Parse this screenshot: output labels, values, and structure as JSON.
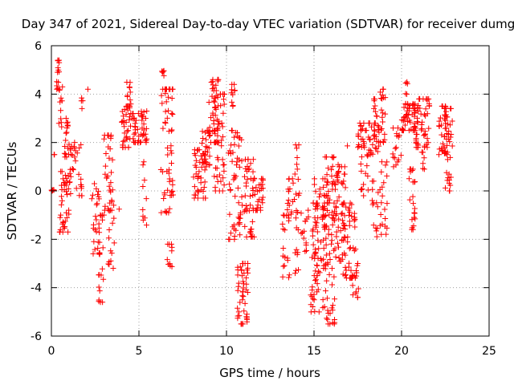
{
  "chart_data": {
    "type": "scatter",
    "title": "Day 347 of 2021, Sidereal Day-to-day VTEC variation (SDTVAR) for receiver dumg",
    "xlabel": "GPS time / hours",
    "ylabel": "SDTVAR / TECUs",
    "xlim": [
      0,
      25
    ],
    "ylim": [
      -6,
      6
    ],
    "xticks": [
      "0",
      "5",
      "10",
      "15",
      "20",
      "25"
    ],
    "yticks": [
      "-6",
      "-4",
      "-2",
      "0",
      "2",
      "4",
      "6"
    ],
    "grid": true,
    "marker": "plus",
    "color": "#ff0000",
    "clusters": [
      {
        "x0": 0.0,
        "x1": 0.15,
        "lo": 0.0,
        "hi": 0.05,
        "n": 6
      },
      {
        "x0": 0.15,
        "x1": 0.2,
        "lo": 1.3,
        "hi": 1.5,
        "n": 2
      },
      {
        "x0": 0.2,
        "x1": 0.45,
        "lo": 4.2,
        "hi": 5.4,
        "n": 14
      },
      {
        "x0": 0.4,
        "x1": 0.65,
        "lo": 2.6,
        "hi": 4.3,
        "n": 10
      },
      {
        "x0": 0.45,
        "x1": 1.0,
        "lo": -1.7,
        "hi": 0.8,
        "n": 38
      },
      {
        "x0": 0.75,
        "x1": 1.0,
        "lo": 1.4,
        "hi": 3.0,
        "n": 16
      },
      {
        "x0": 1.0,
        "x1": 1.75,
        "lo": -0.2,
        "hi": 2.0,
        "n": 34
      },
      {
        "x0": 1.7,
        "x1": 1.85,
        "lo": 3.3,
        "hi": 3.9,
        "n": 4
      },
      {
        "x0": 2.05,
        "x1": 2.1,
        "lo": 4.2,
        "hi": 4.3,
        "n": 1
      },
      {
        "x0": 2.3,
        "x1": 2.75,
        "lo": -2.6,
        "hi": 0.3,
        "n": 24
      },
      {
        "x0": 2.7,
        "x1": 3.0,
        "lo": -4.6,
        "hi": -1.0,
        "n": 22
      },
      {
        "x0": 3.0,
        "x1": 3.5,
        "lo": -0.8,
        "hi": 2.3,
        "n": 30
      },
      {
        "x0": 3.2,
        "x1": 3.6,
        "lo": -3.2,
        "hi": -0.5,
        "n": 16
      },
      {
        "x0": 3.85,
        "x1": 3.95,
        "lo": -0.9,
        "hi": -0.7,
        "n": 1
      },
      {
        "x0": 4.0,
        "x1": 4.5,
        "lo": 1.8,
        "hi": 3.5,
        "n": 34
      },
      {
        "x0": 4.3,
        "x1": 4.55,
        "lo": 3.5,
        "hi": 4.6,
        "n": 10
      },
      {
        "x0": 4.5,
        "x1": 5.0,
        "lo": 2.0,
        "hi": 3.2,
        "n": 24
      },
      {
        "x0": 5.0,
        "x1": 5.45,
        "lo": 2.0,
        "hi": 3.3,
        "n": 24
      },
      {
        "x0": 5.2,
        "x1": 5.45,
        "lo": -1.5,
        "hi": 1.2,
        "n": 10
      },
      {
        "x0": 6.25,
        "x1": 6.45,
        "lo": 4.6,
        "hi": 5.2,
        "n": 5
      },
      {
        "x0": 6.25,
        "x1": 6.95,
        "lo": -0.9,
        "hi": 4.2,
        "n": 56
      },
      {
        "x0": 6.6,
        "x1": 6.9,
        "lo": -3.2,
        "hi": -2.2,
        "n": 10
      },
      {
        "x0": 8.1,
        "x1": 8.8,
        "lo": -0.3,
        "hi": 1.7,
        "n": 40
      },
      {
        "x0": 8.6,
        "x1": 9.1,
        "lo": 1.0,
        "hi": 2.5,
        "n": 28
      },
      {
        "x0": 9.0,
        "x1": 9.6,
        "lo": 2.0,
        "hi": 4.6,
        "n": 44
      },
      {
        "x0": 9.3,
        "x1": 9.9,
        "lo": 0.0,
        "hi": 4.0,
        "n": 44
      },
      {
        "x0": 10.2,
        "x1": 10.5,
        "lo": 3.5,
        "hi": 4.4,
        "n": 10
      },
      {
        "x0": 10.1,
        "x1": 10.9,
        "lo": -2.0,
        "hi": 2.5,
        "n": 56
      },
      {
        "x0": 10.6,
        "x1": 11.3,
        "lo": -5.5,
        "hi": -3.0,
        "n": 48
      },
      {
        "x0": 11.0,
        "x1": 11.6,
        "lo": -1.9,
        "hi": 1.3,
        "n": 40
      },
      {
        "x0": 11.5,
        "x1": 12.1,
        "lo": -0.8,
        "hi": 0.5,
        "n": 30
      },
      {
        "x0": 13.2,
        "x1": 13.6,
        "lo": -3.6,
        "hi": -1.0,
        "n": 18
      },
      {
        "x0": 13.4,
        "x1": 13.9,
        "lo": -1.0,
        "hi": 0.5,
        "n": 16
      },
      {
        "x0": 13.9,
        "x1": 14.2,
        "lo": -3.4,
        "hi": 1.9,
        "n": 24
      },
      {
        "x0": 14.2,
        "x1": 14.7,
        "lo": -2.5,
        "hi": -0.8,
        "n": 14
      },
      {
        "x0": 14.8,
        "x1": 15.3,
        "lo": -5.0,
        "hi": -0.5,
        "n": 40
      },
      {
        "x0": 15.0,
        "x1": 15.8,
        "lo": -3.5,
        "hi": 0.5,
        "n": 48
      },
      {
        "x0": 15.5,
        "x1": 16.2,
        "lo": -5.5,
        "hi": -0.5,
        "n": 52
      },
      {
        "x0": 15.4,
        "x1": 16.5,
        "lo": -1.5,
        "hi": 1.4,
        "n": 40
      },
      {
        "x0": 16.1,
        "x1": 16.8,
        "lo": -2.9,
        "hi": 1.0,
        "n": 44
      },
      {
        "x0": 16.6,
        "x1": 17.4,
        "lo": -3.6,
        "hi": -0.5,
        "n": 50
      },
      {
        "x0": 16.9,
        "x1": 17.1,
        "lo": 1.8,
        "hi": 1.9,
        "n": 1
      },
      {
        "x0": 17.2,
        "x1": 17.6,
        "lo": -4.4,
        "hi": -3.0,
        "n": 12
      },
      {
        "x0": 17.5,
        "x1": 17.9,
        "lo": 1.8,
        "hi": 2.8,
        "n": 16
      },
      {
        "x0": 17.6,
        "x1": 18.1,
        "lo": -0.2,
        "hi": 2.5,
        "n": 20
      },
      {
        "x0": 18.1,
        "x1": 18.7,
        "lo": 1.5,
        "hi": 2.8,
        "n": 30
      },
      {
        "x0": 18.3,
        "x1": 18.6,
        "lo": 3.0,
        "hi": 3.8,
        "n": 8
      },
      {
        "x0": 18.3,
        "x1": 18.8,
        "lo": -1.9,
        "hi": 0.4,
        "n": 16
      },
      {
        "x0": 18.7,
        "x1": 19.1,
        "lo": 2.0,
        "hi": 4.2,
        "n": 22
      },
      {
        "x0": 18.8,
        "x1": 19.2,
        "lo": -1.8,
        "hi": 1.2,
        "n": 18
      },
      {
        "x0": 19.5,
        "x1": 20.0,
        "lo": 1.0,
        "hi": 2.6,
        "n": 16
      },
      {
        "x0": 20.0,
        "x1": 20.8,
        "lo": 2.5,
        "hi": 3.6,
        "n": 50
      },
      {
        "x0": 20.2,
        "x1": 20.4,
        "lo": 4.0,
        "hi": 4.5,
        "n": 5
      },
      {
        "x0": 20.4,
        "x1": 20.8,
        "lo": -1.6,
        "hi": 0.9,
        "n": 22
      },
      {
        "x0": 20.8,
        "x1": 21.6,
        "lo": 1.8,
        "hi": 3.8,
        "n": 50
      },
      {
        "x0": 21.1,
        "x1": 21.4,
        "lo": 0.9,
        "hi": 1.8,
        "n": 6
      },
      {
        "x0": 22.1,
        "x1": 22.6,
        "lo": 1.5,
        "hi": 3.5,
        "n": 40
      },
      {
        "x0": 22.5,
        "x1": 22.9,
        "lo": 0.0,
        "hi": 3.4,
        "n": 30
      }
    ]
  }
}
